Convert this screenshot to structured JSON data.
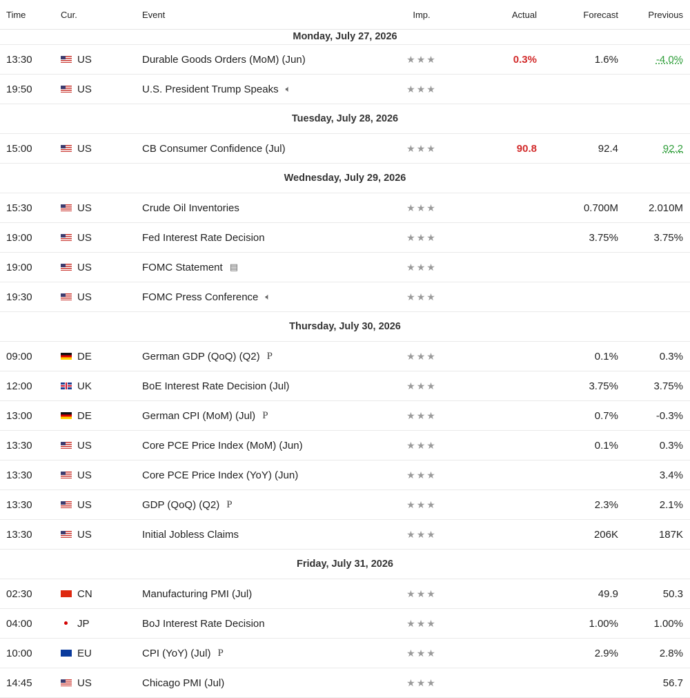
{
  "header": {
    "time": "Time",
    "cur": "Cur.",
    "event": "Event",
    "imp": "Imp.",
    "actual": "Actual",
    "forecast": "Forecast",
    "previous": "Previous"
  },
  "icons": {
    "star": "★",
    "speaker": "🔈︎",
    "document": "▤",
    "preliminary": "P"
  },
  "stars": "★★★",
  "days": [
    {
      "date": "Monday, July 27, 2026",
      "events": [
        {
          "time": "13:30",
          "flag": "us",
          "cur": "US",
          "event": "Durable Goods Orders (MoM) (Jun)",
          "icon": "",
          "actual": "0.3%",
          "actual_color": "red",
          "forecast": "1.6%",
          "previous": "-4.0%",
          "previous_color": "green"
        },
        {
          "time": "19:50",
          "flag": "us",
          "cur": "US",
          "event": "U.S. President Trump Speaks",
          "icon": "speaker",
          "actual": "",
          "forecast": "",
          "previous": ""
        }
      ]
    },
    {
      "date": "Tuesday, July 28, 2026",
      "events": [
        {
          "time": "15:00",
          "flag": "us",
          "cur": "US",
          "event": "CB Consumer Confidence  (Jul)",
          "icon": "",
          "actual": "90.8",
          "actual_color": "red",
          "forecast": "92.4",
          "previous": "92.2",
          "previous_color": "green"
        }
      ]
    },
    {
      "date": "Wednesday, July 29, 2026",
      "events": [
        {
          "time": "15:30",
          "flag": "us",
          "cur": "US",
          "event": "Crude Oil Inventories",
          "icon": "",
          "actual": "",
          "forecast": "0.700M",
          "previous": "2.010M"
        },
        {
          "time": "19:00",
          "flag": "us",
          "cur": "US",
          "event": "Fed Interest Rate Decision",
          "icon": "",
          "actual": "",
          "forecast": "3.75%",
          "previous": "3.75%"
        },
        {
          "time": "19:00",
          "flag": "us",
          "cur": "US",
          "event": "FOMC Statement",
          "icon": "document",
          "actual": "",
          "forecast": "",
          "previous": ""
        },
        {
          "time": "19:30",
          "flag": "us",
          "cur": "US",
          "event": "FOMC Press Conference",
          "icon": "speaker",
          "actual": "",
          "forecast": "",
          "previous": ""
        }
      ]
    },
    {
      "date": "Thursday, July 30, 2026",
      "events": [
        {
          "time": "09:00",
          "flag": "de",
          "cur": "DE",
          "event": "German GDP (QoQ) (Q2)",
          "icon": "preliminary",
          "actual": "",
          "forecast": "0.1%",
          "previous": "0.3%"
        },
        {
          "time": "12:00",
          "flag": "uk",
          "cur": "UK",
          "event": "BoE Interest Rate Decision  (Jul)",
          "icon": "",
          "actual": "",
          "forecast": "3.75%",
          "previous": "3.75%"
        },
        {
          "time": "13:00",
          "flag": "de",
          "cur": "DE",
          "event": "German CPI (MoM) (Jul)",
          "icon": "preliminary",
          "actual": "",
          "forecast": "0.7%",
          "previous": "-0.3%"
        },
        {
          "time": "13:30",
          "flag": "us",
          "cur": "US",
          "event": "Core PCE Price Index (MoM) (Jun)",
          "icon": "",
          "actual": "",
          "forecast": "0.1%",
          "previous": "0.3%"
        },
        {
          "time": "13:30",
          "flag": "us",
          "cur": "US",
          "event": "Core PCE Price Index (YoY) (Jun)",
          "icon": "",
          "actual": "",
          "forecast": "",
          "previous": "3.4%"
        },
        {
          "time": "13:30",
          "flag": "us",
          "cur": "US",
          "event": "GDP (QoQ) (Q2)",
          "icon": "preliminary",
          "actual": "",
          "forecast": "2.3%",
          "previous": "2.1%"
        },
        {
          "time": "13:30",
          "flag": "us",
          "cur": "US",
          "event": "Initial Jobless Claims",
          "icon": "",
          "actual": "",
          "forecast": "206K",
          "previous": "187K"
        }
      ]
    },
    {
      "date": "Friday, July 31, 2026",
      "events": [
        {
          "time": "02:30",
          "flag": "cn",
          "cur": "CN",
          "event": "Manufacturing PMI  (Jul)",
          "icon": "",
          "actual": "",
          "forecast": "49.9",
          "previous": "50.3"
        },
        {
          "time": "04:00",
          "flag": "jp",
          "cur": "JP",
          "event": "BoJ Interest Rate Decision",
          "icon": "",
          "actual": "",
          "forecast": "1.00%",
          "previous": "1.00%"
        },
        {
          "time": "10:00",
          "flag": "eu",
          "cur": "EU",
          "event": "CPI (YoY) (Jul)",
          "icon": "preliminary",
          "actual": "",
          "forecast": "2.9%",
          "previous": "2.8%"
        },
        {
          "time": "14:45",
          "flag": "us",
          "cur": "US",
          "event": "Chicago PMI  (Jul)",
          "icon": "",
          "actual": "",
          "forecast": "",
          "previous": "56.7"
        }
      ]
    }
  ]
}
